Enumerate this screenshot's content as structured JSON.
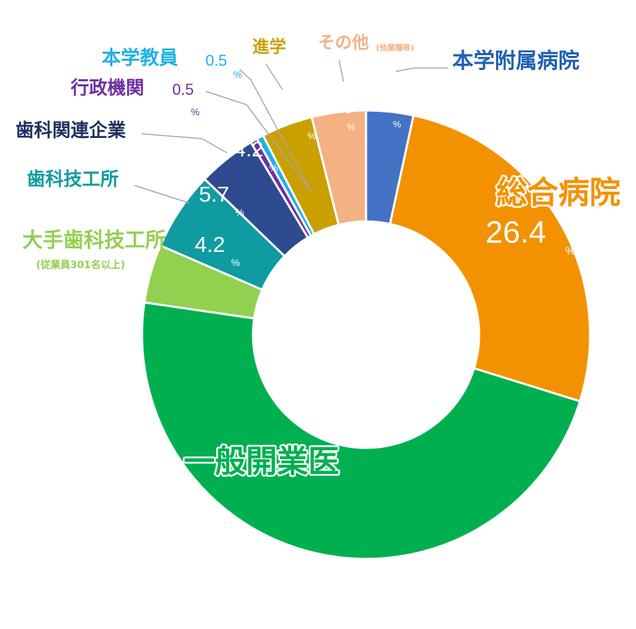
{
  "chart_data": {
    "type": "pie",
    "donut": true,
    "legend": "none",
    "percent_sign": "%",
    "slices": [
      {
        "key": "hospital",
        "label": "本学附属病院",
        "value": 3.4,
        "value_text": "3.4",
        "color": "#4472c4",
        "label_color": "#1f5fb2"
      },
      {
        "key": "general",
        "label": "総合病院",
        "value": 26.4,
        "value_text": "26.4",
        "color": "#f39200",
        "label_color": "#f39200"
      },
      {
        "key": "clinic",
        "label": "一般開業医",
        "value": 47.5,
        "value_text": "47.5",
        "color": "#00b050",
        "label_color": "#00b050"
      },
      {
        "key": "biglab",
        "label": "大手歯科技工所",
        "sublabel": "(従業員301名以上)",
        "value": 4.2,
        "value_text": "4.2",
        "color": "#92d050",
        "label_color": "#92d050"
      },
      {
        "key": "lab",
        "label": "歯科技工所",
        "value": 5.7,
        "value_text": "5.7",
        "color": "#0f9ba1",
        "label_color": "#0f9ba1"
      },
      {
        "key": "industry",
        "label": "歯科関連企業",
        "value": 4.2,
        "value_text": "4.2",
        "color": "#2f4b8f",
        "label_color": "#1f2f5f"
      },
      {
        "key": "admin",
        "label": "行政機関",
        "value": 0.5,
        "value_text": "0.5",
        "color": "#7030a0",
        "label_color": "#7030a0"
      },
      {
        "key": "faculty",
        "label": "本学教員",
        "value": 0.5,
        "value_text": "0.5",
        "color": "#1fb0e6",
        "label_color": "#1fb0e6"
      },
      {
        "key": "study",
        "label": "進学",
        "value": 3.7,
        "value_text": "3.7",
        "color": "#c9a000",
        "label_color": "#c9a000"
      },
      {
        "key": "other",
        "label": "その他",
        "sublabel": "(他業種等)",
        "value": 3.9,
        "value_text": "3.9",
        "color": "#f4b183",
        "label_color": "#f4b183"
      }
    ]
  }
}
